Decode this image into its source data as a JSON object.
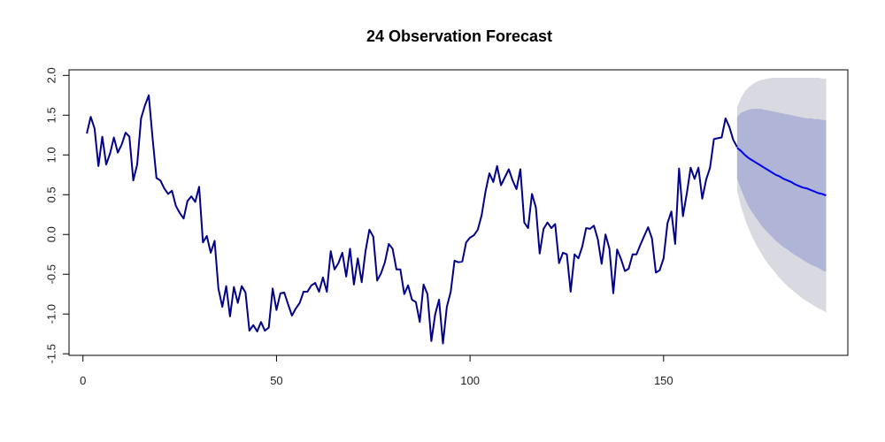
{
  "chart_data": {
    "type": "line",
    "title": "24 Observation Forecast",
    "xlabel": "",
    "ylabel": "",
    "xlim": [
      -3.6,
      197.6
    ],
    "ylim": [
      -1.52,
      2.07
    ],
    "x_ticks": [
      0,
      50,
      100,
      150
    ],
    "y_ticks": [
      -1.5,
      -1.0,
      -0.5,
      0.0,
      0.5,
      1.0,
      1.5,
      2.0
    ],
    "y_tick_labels": [
      "-1.5",
      "-1.0",
      "-0.5",
      "0.0",
      "0.5",
      "1.0",
      "1.5",
      "2.0"
    ],
    "grid": false,
    "series": [
      {
        "role": "observed",
        "color": "#00008b",
        "x_start": 1,
        "values": [
          1.27,
          1.48,
          1.33,
          0.86,
          1.23,
          0.88,
          1.02,
          1.22,
          1.03,
          1.13,
          1.28,
          1.23,
          0.68,
          0.88,
          1.46,
          1.62,
          1.75,
          1.2,
          0.71,
          0.68,
          0.58,
          0.51,
          0.55,
          0.36,
          0.27,
          0.2,
          0.42,
          0.48,
          0.41,
          0.6,
          -0.1,
          -0.02,
          -0.23,
          -0.08,
          -0.68,
          -0.91,
          -0.65,
          -1.03,
          -0.66,
          -0.86,
          -0.65,
          -0.73,
          -1.21,
          -1.14,
          -1.22,
          -1.1,
          -1.21,
          -1.17,
          -0.68,
          -0.95,
          -0.74,
          -0.73,
          -0.88,
          -1.02,
          -0.93,
          -0.86,
          -0.72,
          -0.72,
          -0.64,
          -0.61,
          -0.72,
          -0.54,
          -0.72,
          -0.21,
          -0.44,
          -0.36,
          -0.23,
          -0.53,
          -0.18,
          -0.63,
          -0.3,
          -0.6,
          -0.21,
          0.06,
          -0.03,
          -0.58,
          -0.49,
          -0.35,
          -0.12,
          -0.18,
          -0.44,
          -0.44,
          -0.75,
          -0.64,
          -0.82,
          -0.85,
          -1.1,
          -0.63,
          -0.75,
          -1.34,
          -1.0,
          -0.82,
          -1.37,
          -0.91,
          -0.72,
          -0.33,
          -0.35,
          -0.34,
          -0.1,
          -0.04,
          -0.01,
          0.06,
          0.24,
          0.54,
          0.77,
          0.66,
          0.86,
          0.62,
          0.72,
          0.82,
          0.68,
          0.57,
          0.82,
          0.15,
          0.08,
          0.51,
          0.34,
          -0.24,
          0.07,
          0.15,
          0.08,
          0.13,
          -0.36,
          -0.23,
          -0.25,
          -0.72,
          -0.25,
          -0.3,
          -0.15,
          0.08,
          0.07,
          0.11,
          -0.06,
          -0.37,
          0.0,
          -0.18,
          -0.74,
          -0.19,
          -0.31,
          -0.46,
          -0.43,
          -0.25,
          -0.25,
          -0.13,
          -0.02,
          0.09,
          -0.05,
          -0.48,
          -0.45,
          -0.3,
          0.14,
          0.29,
          -0.12,
          0.83,
          0.23,
          0.52,
          0.84,
          0.7,
          0.84,
          0.45,
          0.69,
          0.84,
          1.2,
          1.21,
          1.22,
          1.46,
          1.35,
          1.19,
          1.1
        ]
      },
      {
        "role": "forecast",
        "color": "#0000ee",
        "x_start": 169,
        "values": [
          1.09,
          1.05,
          1.0,
          0.96,
          0.93,
          0.9,
          0.87,
          0.84,
          0.81,
          0.78,
          0.75,
          0.73,
          0.7,
          0.68,
          0.66,
          0.63,
          0.61,
          0.59,
          0.58,
          0.56,
          0.54,
          0.52,
          0.51,
          0.49
        ]
      }
    ],
    "bands": [
      {
        "level": "80%",
        "color": "#b0b4d6",
        "upper": [
          1.48,
          1.53,
          1.55,
          1.57,
          1.58,
          1.58,
          1.58,
          1.57,
          1.56,
          1.55,
          1.54,
          1.53,
          1.52,
          1.51,
          1.5,
          1.49,
          1.48,
          1.47,
          1.46,
          1.46,
          1.45,
          1.45,
          1.44,
          1.44
        ],
        "lower": [
          0.7,
          0.57,
          0.45,
          0.35,
          0.27,
          0.2,
          0.13,
          0.07,
          0.02,
          -0.03,
          -0.08,
          -0.12,
          -0.16,
          -0.19,
          -0.23,
          -0.26,
          -0.29,
          -0.32,
          -0.35,
          -0.38,
          -0.4,
          -0.42,
          -0.45,
          -0.47
        ]
      },
      {
        "level": "95%",
        "color": "#d9d9e1",
        "upper": [
          1.6,
          1.72,
          1.8,
          1.85,
          1.89,
          1.92,
          1.94,
          1.95,
          1.96,
          1.97,
          1.97,
          1.97,
          1.97,
          1.97,
          1.97,
          1.97,
          1.97,
          1.97,
          1.97,
          1.97,
          1.97,
          1.97,
          1.96,
          1.96
        ],
        "lower": [
          0.55,
          0.35,
          0.2,
          0.07,
          -0.04,
          -0.14,
          -0.22,
          -0.3,
          -0.37,
          -0.43,
          -0.49,
          -0.55,
          -0.6,
          -0.65,
          -0.69,
          -0.73,
          -0.77,
          -0.81,
          -0.84,
          -0.87,
          -0.9,
          -0.93,
          -0.95,
          -0.98
        ]
      }
    ]
  }
}
